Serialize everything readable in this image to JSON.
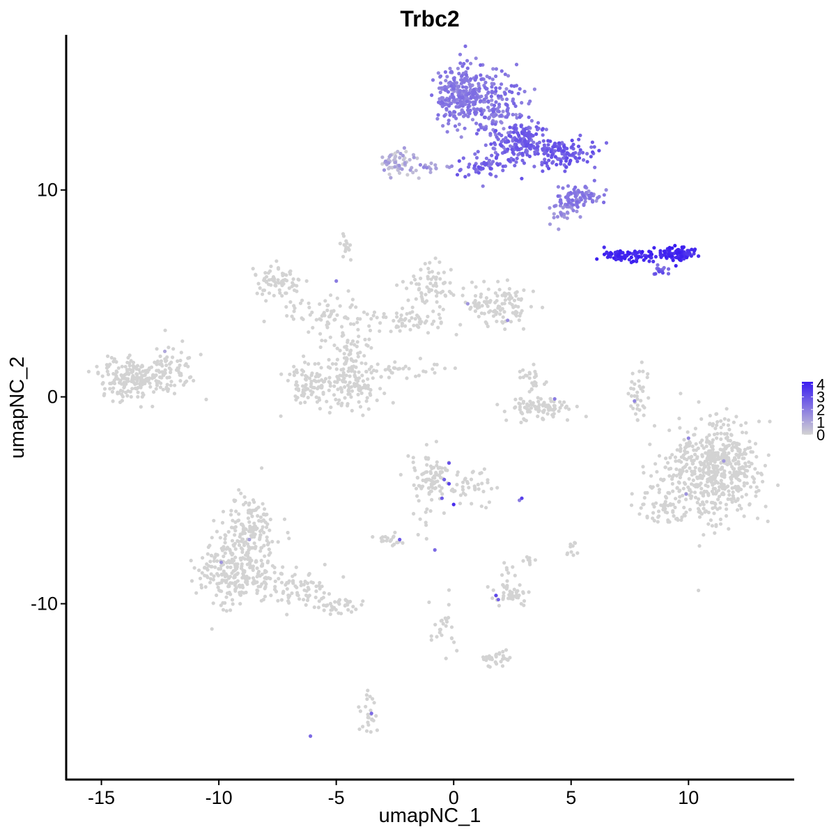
{
  "chart_data": {
    "type": "scatter",
    "title": "Trbc2",
    "xlabel": "umapNC_1",
    "ylabel": "umapNC_2",
    "xlim": [
      -16.5,
      14.5
    ],
    "ylim": [
      -18.5,
      17.5
    ],
    "x_ticks": [
      -15,
      -10,
      -5,
      0,
      5,
      10
    ],
    "x_tick_labels": [
      "-15",
      "-10",
      "-5",
      "0",
      "5",
      "10"
    ],
    "y_ticks": [
      -10,
      0,
      10
    ],
    "y_tick_labels": [
      "-10",
      "0",
      "10"
    ],
    "grid": false,
    "legend": {
      "placement": "right",
      "type": "colorbar",
      "min": 0,
      "max": 4.2,
      "ticks": [
        0,
        1,
        2,
        3,
        4
      ],
      "tick_labels": [
        "0",
        "1",
        "2",
        "3",
        "4"
      ],
      "low_color": "#d3d3d3",
      "high_color": "#3a1cf0"
    },
    "clusters": [
      {
        "cx": 0.3,
        "cy": 14.6,
        "sx": 0.55,
        "sy": 0.75,
        "n": 260,
        "expr": [
          1.6,
          2.4
        ]
      },
      {
        "cx": 1.7,
        "cy": 14.0,
        "sx": 0.6,
        "sy": 0.9,
        "n": 160,
        "expr": [
          1.6,
          2.6
        ]
      },
      {
        "cx": 2.8,
        "cy": 12.3,
        "sx": 0.6,
        "sy": 0.45,
        "n": 150,
        "expr": [
          2.0,
          3.0
        ]
      },
      {
        "cx": 4.5,
        "cy": 11.8,
        "sx": 0.8,
        "sy": 0.35,
        "n": 140,
        "expr": [
          2.2,
          3.2
        ]
      },
      {
        "cx": 1.2,
        "cy": 11.2,
        "sx": 0.6,
        "sy": 0.3,
        "n": 50,
        "expr": [
          2.0,
          3.0
        ]
      },
      {
        "cx": 5.3,
        "cy": 9.7,
        "sx": 0.5,
        "sy": 0.3,
        "n": 90,
        "expr": [
          1.4,
          2.4
        ]
      },
      {
        "cx": 4.5,
        "cy": 8.9,
        "sx": 0.3,
        "sy": 0.3,
        "n": 25,
        "expr": [
          1.2,
          2.0
        ]
      },
      {
        "cx": -2.3,
        "cy": 11.3,
        "sx": 0.45,
        "sy": 0.3,
        "n": 60,
        "expr": [
          0.0,
          1.5
        ]
      },
      {
        "cx": -1.0,
        "cy": 11.1,
        "sx": 0.35,
        "sy": 0.1,
        "n": 15,
        "expr": [
          0.8,
          1.8
        ]
      },
      {
        "cx": 7.3,
        "cy": 6.8,
        "sx": 0.45,
        "sy": 0.12,
        "n": 70,
        "expr": [
          3.5,
          4.2
        ]
      },
      {
        "cx": 9.4,
        "cy": 6.9,
        "sx": 0.5,
        "sy": 0.2,
        "n": 90,
        "expr": [
          3.4,
          4.2
        ]
      },
      {
        "cx": 8.8,
        "cy": 6.1,
        "sx": 0.2,
        "sy": 0.15,
        "n": 15,
        "expr": [
          2.2,
          3.2
        ]
      },
      {
        "cx": -13.4,
        "cy": 0.9,
        "sx": 0.9,
        "sy": 0.45,
        "n": 230,
        "expr": [
          0,
          0
        ]
      },
      {
        "cx": -12.0,
        "cy": 1.7,
        "sx": 0.5,
        "sy": 0.4,
        "n": 30,
        "expr": [
          0,
          0
        ]
      },
      {
        "cx": -7.5,
        "cy": 5.6,
        "sx": 0.6,
        "sy": 0.4,
        "n": 70,
        "expr": [
          0,
          0
        ]
      },
      {
        "cx": -5.5,
        "cy": 4.0,
        "sx": 0.9,
        "sy": 0.4,
        "n": 60,
        "expr": [
          0,
          0
        ]
      },
      {
        "cx": -6.0,
        "cy": 0.6,
        "sx": 0.6,
        "sy": 0.55,
        "n": 90,
        "expr": [
          0,
          0
        ]
      },
      {
        "cx": -4.3,
        "cy": 0.6,
        "sx": 0.6,
        "sy": 0.65,
        "n": 110,
        "expr": [
          0,
          0
        ]
      },
      {
        "cx": -4.6,
        "cy": 2.4,
        "sx": 0.5,
        "sy": 0.7,
        "n": 60,
        "expr": [
          0,
          0
        ]
      },
      {
        "cx": -2.0,
        "cy": 3.6,
        "sx": 0.9,
        "sy": 0.3,
        "n": 60,
        "expr": [
          0,
          0
        ]
      },
      {
        "cx": -1.0,
        "cy": 5.3,
        "sx": 0.5,
        "sy": 0.6,
        "n": 70,
        "expr": [
          0,
          0
        ]
      },
      {
        "cx": 1.8,
        "cy": 4.4,
        "sx": 0.8,
        "sy": 0.45,
        "n": 110,
        "expr": [
          0,
          0
        ]
      },
      {
        "cx": -2.4,
        "cy": 1.3,
        "sx": 0.9,
        "sy": 0.25,
        "n": 35,
        "expr": [
          0,
          0
        ]
      },
      {
        "cx": -4.5,
        "cy": 7.3,
        "sx": 0.2,
        "sy": 0.3,
        "n": 15,
        "expr": [
          0,
          0
        ]
      },
      {
        "cx": 3.8,
        "cy": -0.6,
        "sx": 0.8,
        "sy": 0.3,
        "n": 90,
        "expr": [
          0,
          0
        ]
      },
      {
        "cx": 3.3,
        "cy": 0.7,
        "sx": 0.3,
        "sy": 0.35,
        "n": 25,
        "expr": [
          0,
          0
        ]
      },
      {
        "cx": 7.9,
        "cy": 0.2,
        "sx": 0.2,
        "sy": 0.6,
        "n": 35,
        "expr": [
          0,
          0
        ]
      },
      {
        "cx": 11.0,
        "cy": -3.6,
        "sx": 1.0,
        "sy": 1.2,
        "n": 480,
        "expr": [
          0,
          0
        ]
      },
      {
        "cx": 8.9,
        "cy": -5.0,
        "sx": 0.5,
        "sy": 0.6,
        "n": 60,
        "expr": [
          0,
          0
        ]
      },
      {
        "cx": 11.8,
        "cy": -2.8,
        "sx": 0.5,
        "sy": 0.6,
        "n": 80,
        "expr": [
          0,
          0
        ]
      },
      {
        "cx": -0.9,
        "cy": -3.8,
        "sx": 0.5,
        "sy": 0.6,
        "n": 80,
        "expr": [
          0,
          0
        ]
      },
      {
        "cx": 0.8,
        "cy": -4.4,
        "sx": 0.5,
        "sy": 0.5,
        "n": 40,
        "expr": [
          0,
          0
        ]
      },
      {
        "cx": -1.2,
        "cy": -5.6,
        "sx": 0.3,
        "sy": 0.6,
        "n": 15,
        "expr": [
          0,
          0
        ]
      },
      {
        "cx": -2.7,
        "cy": -6.9,
        "sx": 0.25,
        "sy": 0.15,
        "n": 20,
        "expr": [
          0,
          0
        ]
      },
      {
        "cx": -8.7,
        "cy": -6.5,
        "sx": 0.6,
        "sy": 0.8,
        "n": 160,
        "expr": [
          0,
          0
        ]
      },
      {
        "cx": -9.4,
        "cy": -8.5,
        "sx": 0.8,
        "sy": 0.8,
        "n": 220,
        "expr": [
          0,
          0
        ]
      },
      {
        "cx": -6.8,
        "cy": -9.2,
        "sx": 0.9,
        "sy": 0.45,
        "n": 90,
        "expr": [
          0,
          0
        ]
      },
      {
        "cx": -4.8,
        "cy": -10.1,
        "sx": 0.5,
        "sy": 0.2,
        "n": 35,
        "expr": [
          0,
          0
        ]
      },
      {
        "cx": 2.4,
        "cy": -9.5,
        "sx": 0.4,
        "sy": 0.25,
        "n": 40,
        "expr": [
          0,
          0
        ]
      },
      {
        "cx": 2.3,
        "cy": -8.6,
        "sx": 0.15,
        "sy": 0.3,
        "n": 10,
        "expr": [
          0,
          0
        ]
      },
      {
        "cx": 1.8,
        "cy": -12.7,
        "sx": 0.35,
        "sy": 0.2,
        "n": 30,
        "expr": [
          0,
          0
        ]
      },
      {
        "cx": -0.4,
        "cy": -11.2,
        "sx": 0.3,
        "sy": 0.8,
        "n": 25,
        "expr": [
          0,
          0
        ]
      },
      {
        "cx": -3.5,
        "cy": -15.3,
        "sx": 0.2,
        "sy": 0.6,
        "n": 25,
        "expr": [
          0,
          0
        ]
      },
      {
        "cx": 5.0,
        "cy": -7.2,
        "sx": 0.1,
        "sy": 0.3,
        "n": 10,
        "expr": [
          0,
          0
        ]
      },
      {
        "cx": 3.2,
        "cy": -7.8,
        "sx": 0.12,
        "sy": 0.15,
        "n": 8,
        "expr": [
          0,
          0
        ]
      }
    ],
    "extra_expressing_points": [
      {
        "x": -0.2,
        "y": -3.2,
        "v": 3.0
      },
      {
        "x": -0.2,
        "y": -4.2,
        "v": 3.3
      },
      {
        "x": -0.4,
        "y": -4.0,
        "v": 2.6
      },
      {
        "x": -0.5,
        "y": -4.9,
        "v": 2.8
      },
      {
        "x": 0.0,
        "y": -5.2,
        "v": 3.8
      },
      {
        "x": 2.9,
        "y": -4.9,
        "v": 3.4
      },
      {
        "x": 2.8,
        "y": -5.0,
        "v": 2.0
      },
      {
        "x": 1.8,
        "y": -9.6,
        "v": 3.2
      },
      {
        "x": 1.9,
        "y": -9.8,
        "v": 2.6
      },
      {
        "x": -2.3,
        "y": -6.9,
        "v": 2.8
      },
      {
        "x": -6.1,
        "y": -16.4,
        "v": 2.4
      },
      {
        "x": -3.5,
        "y": -15.3,
        "v": 2.4
      },
      {
        "x": -0.8,
        "y": -7.4,
        "v": 2.4
      },
      {
        "x": 10.0,
        "y": -2.0,
        "v": 1.8
      },
      {
        "x": 9.9,
        "y": -4.7,
        "v": 1.5
      },
      {
        "x": 11.5,
        "y": -3.1,
        "v": 1.4
      },
      {
        "x": 7.7,
        "y": -0.2,
        "v": 1.8
      },
      {
        "x": 4.3,
        "y": -0.1,
        "v": 2.0
      },
      {
        "x": -5.0,
        "y": 5.6,
        "v": 2.0
      },
      {
        "x": 2.3,
        "y": 3.7,
        "v": 1.6
      },
      {
        "x": 0.6,
        "y": 4.5,
        "v": 1.4
      },
      {
        "x": -9.9,
        "y": -8.0,
        "v": 1.4
      },
      {
        "x": -8.7,
        "y": -6.9,
        "v": 1.2
      },
      {
        "x": -12.3,
        "y": 2.2,
        "v": 1.0
      }
    ]
  }
}
